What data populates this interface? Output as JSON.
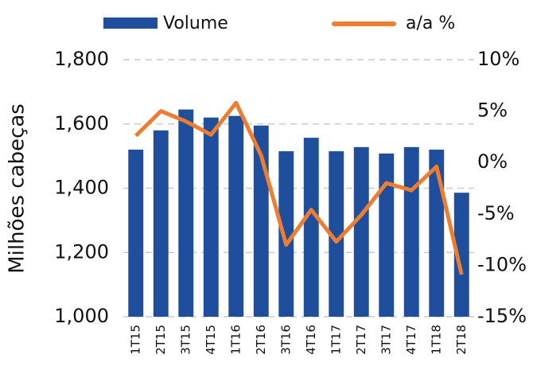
{
  "chart_data": {
    "type": "bar",
    "ylabel": "Milhões cabeças",
    "categories": [
      "1T15",
      "2T15",
      "3T15",
      "4T15",
      "1T16",
      "2T16",
      "3T16",
      "4T16",
      "1T17",
      "2T17",
      "3T17",
      "4T17",
      "1T18",
      "2T18"
    ],
    "series": [
      {
        "name": "Volume",
        "type": "bar",
        "color": "#1f4e9c",
        "values": [
          1520,
          1580,
          1645,
          1620,
          1625,
          1595,
          1515,
          1557,
          1515,
          1528,
          1508,
          1528,
          1520,
          1386
        ]
      },
      {
        "name": "a/a %",
        "type": "line",
        "axis": "y2",
        "color": "#ed7d31",
        "values": [
          2.6,
          5.0,
          4.0,
          2.7,
          5.8,
          0.7,
          -8.0,
          -4.6,
          -7.7,
          -5.1,
          -2.0,
          -2.7,
          -0.4,
          -10.9
        ]
      }
    ],
    "ylim": [
      1000,
      1800
    ],
    "yticks": [
      {
        "value": 1000,
        "label": "1,000"
      },
      {
        "value": 1200,
        "label": "1,200"
      },
      {
        "value": 1400,
        "label": "1,400"
      },
      {
        "value": 1600,
        "label": "1,600"
      },
      {
        "value": 1800,
        "label": "1,800"
      }
    ],
    "y2lim": [
      -15,
      10
    ],
    "y2ticks": [
      {
        "value": -15,
        "label": "-15%"
      },
      {
        "value": -10,
        "label": "-10%"
      },
      {
        "value": -5,
        "label": "-5%"
      },
      {
        "value": 0,
        "label": "0%"
      },
      {
        "value": 5,
        "label": "5%"
      },
      {
        "value": 10,
        "label": "10%"
      }
    ],
    "grid": true
  }
}
